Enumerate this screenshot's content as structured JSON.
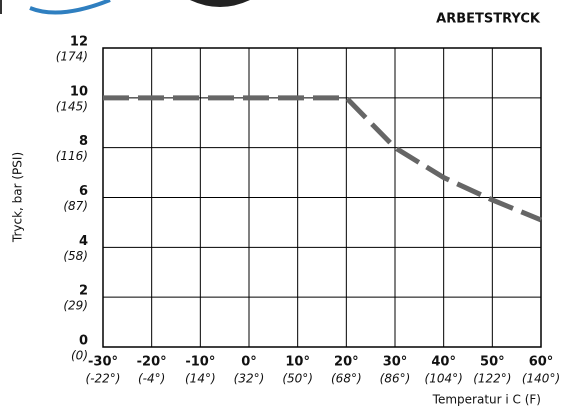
{
  "chart_data": {
    "type": "line",
    "title": "ARBETSTRYCK",
    "y_label": "Tryck, bar (PSI)",
    "x_label": "Temperatur i C (F)",
    "x": [
      -30,
      20,
      25,
      30,
      40,
      50,
      60
    ],
    "series": [
      {
        "name": "Arbetstryck",
        "color": "#666666",
        "values": [
          10,
          10,
          9.0,
          8.0,
          6.8,
          5.9,
          5.1
        ]
      }
    ],
    "xlim": [
      -30,
      60
    ],
    "xticks": [
      {
        "value": -30,
        "label": "-30°"
      },
      {
        "value": -20,
        "label": "-20°"
      },
      {
        "value": -10,
        "label": "-10°"
      },
      {
        "value": 0,
        "label": "0°"
      },
      {
        "value": 10,
        "label": "10°"
      },
      {
        "value": 20,
        "label": "20°"
      },
      {
        "value": 30,
        "label": "30°"
      },
      {
        "value": 40,
        "label": "40°"
      },
      {
        "value": 50,
        "label": "50°"
      },
      {
        "value": 60,
        "label": "60°"
      }
    ],
    "xticks_f": [
      "(-22°)",
      "(-4°)",
      "(14°)",
      "(32°)",
      "(50°)",
      "(68°)",
      "(86°)",
      "(104°)",
      "(122°)",
      "(140°)"
    ],
    "ylim": [
      0,
      12
    ],
    "yticks": [
      0,
      2,
      4,
      6,
      8,
      10,
      12
    ],
    "yticks_psi": [
      "(0)",
      "(29)",
      "(58)",
      "(87)",
      "(116)",
      "(145)",
      "(174)"
    ],
    "grid": true
  }
}
